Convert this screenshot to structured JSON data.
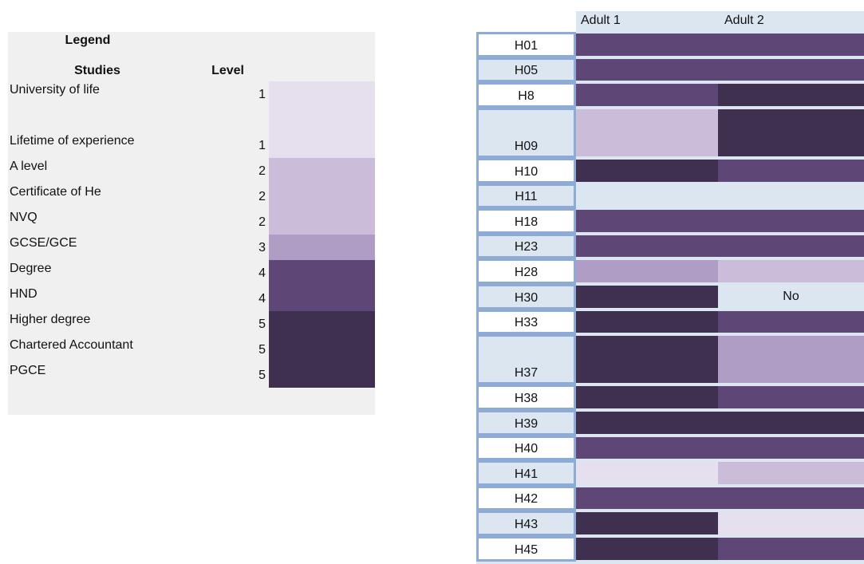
{
  "legend": {
    "title": "Legend",
    "headers": [
      "Studies",
      "Level"
    ],
    "rows": [
      {
        "study": "University of life",
        "level": 1,
        "color": "#e6e0ee"
      },
      {
        "study": "Lifetime of experience",
        "level": 1,
        "color": "#e6e0ee"
      },
      {
        "study": "A level",
        "level": 2,
        "color": "#cbbcd9"
      },
      {
        "study": "Certificate of He",
        "level": 2,
        "color": "#cbbcd9"
      },
      {
        "study": "NVQ",
        "level": 2,
        "color": "#cbbcd9"
      },
      {
        "study": "GCSE/GCE",
        "level": 3,
        "color": "#b09dc5"
      },
      {
        "study": "Degree",
        "level": 4,
        "color": "#5e4676"
      },
      {
        "study": "HND",
        "level": 4,
        "color": "#5e4676"
      },
      {
        "study": "Higher degree",
        "level": 5,
        "color": "#3f3050"
      },
      {
        "study": "Chartered Accountant",
        "level": 5,
        "color": "#3f3050"
      },
      {
        "study": "PGCE",
        "level": 5,
        "color": "#3f3050"
      }
    ]
  },
  "table": {
    "columns": [
      "Adult 1",
      "Adult 2"
    ],
    "rows": [
      {
        "id": "H01",
        "cells": [
          {
            "fill": "#5e4676"
          },
          {
            "fill": "#5e4676"
          }
        ]
      },
      {
        "id": "H05",
        "cells": [
          {
            "fill": "#5e4676"
          },
          {
            "fill": "#5e4676"
          }
        ]
      },
      {
        "id": "H8",
        "cells": [
          {
            "fill": "#5e4676"
          },
          {
            "fill": "#3f3050"
          }
        ]
      },
      {
        "id": "H09",
        "cells": [
          {
            "fill": "#cbbcd9"
          },
          {
            "fill": "#3f3050"
          }
        ]
      },
      {
        "id": "H10",
        "cells": [
          {
            "fill": "#3f3050"
          },
          {
            "fill": "#5e4676"
          }
        ]
      },
      {
        "id": "H11",
        "cells": [
          null,
          null
        ]
      },
      {
        "id": "H18",
        "cells": [
          {
            "fill": "#5e4676"
          },
          {
            "fill": "#5e4676"
          }
        ]
      },
      {
        "id": "H23",
        "cells": [
          {
            "fill": "#5e4676"
          },
          {
            "fill": "#5e4676"
          }
        ]
      },
      {
        "id": "H28",
        "cells": [
          {
            "fill": "#b09dc5"
          },
          {
            "fill": "#cbbcd9"
          }
        ]
      },
      {
        "id": "H30",
        "cells": [
          {
            "fill": "#3f3050"
          },
          {
            "text": "No"
          }
        ]
      },
      {
        "id": "H33",
        "cells": [
          {
            "fill": "#3f3050"
          },
          {
            "fill": "#5e4676"
          }
        ]
      },
      {
        "id": "H37",
        "cells": [
          {
            "fill": "#3f3050"
          },
          {
            "fill": "#b09dc5"
          }
        ]
      },
      {
        "id": "H38",
        "cells": [
          {
            "fill": "#3f3050"
          },
          {
            "fill": "#5e4676"
          }
        ]
      },
      {
        "id": "H39",
        "cells": [
          {
            "fill": "#3f3050"
          },
          {
            "fill": "#3f3050"
          }
        ]
      },
      {
        "id": "H40",
        "cells": [
          {
            "fill": "#5e4676"
          },
          {
            "fill": "#5e4676"
          }
        ]
      },
      {
        "id": "H41",
        "cells": [
          {
            "fill": "#e6e0ee"
          },
          {
            "fill": "#cbbcd9"
          }
        ]
      },
      {
        "id": "H42",
        "cells": [
          {
            "fill": "#5e4676"
          },
          {
            "fill": "#5e4676"
          }
        ]
      },
      {
        "id": "H43",
        "cells": [
          {
            "fill": "#3f3050"
          },
          {
            "fill": "#e6e0ee"
          }
        ]
      },
      {
        "id": "H45",
        "cells": [
          {
            "fill": "#3f3050"
          },
          {
            "fill": "#5e4676"
          }
        ]
      }
    ]
  }
}
